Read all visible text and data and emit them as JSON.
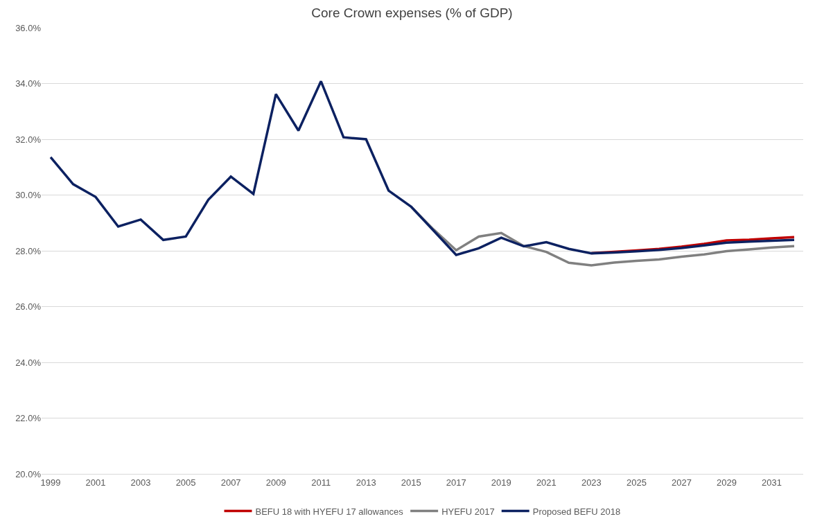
{
  "chart_data": {
    "type": "line",
    "title": "Core Crown expenses (% of GDP)",
    "x": [
      1999,
      2000,
      2001,
      2002,
      2003,
      2004,
      2005,
      2006,
      2007,
      2008,
      2009,
      2010,
      2011,
      2012,
      2013,
      2014,
      2015,
      2016,
      2017,
      2018,
      2019,
      2020,
      2021,
      2022,
      2023,
      2024,
      2025,
      2026,
      2027,
      2028,
      2029,
      2030,
      2031,
      2032
    ],
    "series": [
      {
        "name": "BEFU 18 with HYEFU 17 allowances",
        "color": "#c00000",
        "values": [
          null,
          null,
          null,
          null,
          null,
          null,
          null,
          null,
          null,
          null,
          null,
          null,
          null,
          null,
          null,
          null,
          null,
          null,
          null,
          null,
          null,
          null,
          null,
          null,
          27.91,
          27.96,
          28.01,
          28.07,
          28.15,
          28.25,
          28.37,
          28.4,
          28.45,
          28.49
        ]
      },
      {
        "name": "HYEFU 2017",
        "color": "#808080",
        "values": [
          null,
          null,
          null,
          null,
          null,
          null,
          null,
          null,
          null,
          null,
          null,
          null,
          null,
          null,
          null,
          null,
          29.58,
          28.76,
          28.02,
          28.51,
          28.64,
          28.17,
          27.96,
          27.57,
          27.48,
          27.58,
          27.64,
          27.69,
          27.79,
          27.87,
          27.99,
          28.05,
          28.12,
          28.17
        ]
      },
      {
        "name": "Proposed BEFU 2018",
        "color": "#0c2161",
        "values": [
          31.36,
          30.39,
          29.93,
          28.87,
          29.12,
          28.39,
          28.51,
          29.83,
          30.66,
          30.04,
          33.62,
          32.31,
          34.08,
          32.07,
          32.0,
          30.16,
          29.58,
          28.72,
          27.85,
          28.09,
          28.47,
          28.16,
          28.31,
          28.07,
          27.91,
          27.94,
          27.98,
          28.03,
          28.1,
          28.19,
          28.29,
          28.33,
          28.36,
          28.39
        ]
      }
    ],
    "xlim": [
      1998.6,
      2032.4
    ],
    "xticks": [
      1999,
      2001,
      2003,
      2005,
      2007,
      2009,
      2011,
      2013,
      2015,
      2017,
      2019,
      2021,
      2023,
      2025,
      2027,
      2029,
      2031
    ],
    "ylim": [
      20,
      36
    ],
    "yticks": [
      {
        "value": 20,
        "label": "20.0%"
      },
      {
        "value": 22,
        "label": "22.0%"
      },
      {
        "value": 24,
        "label": "24.0%"
      },
      {
        "value": 26,
        "label": "26.0%"
      },
      {
        "value": 28,
        "label": "28.0%"
      },
      {
        "value": 30,
        "label": "30.0%"
      },
      {
        "value": 32,
        "label": "32.0%"
      },
      {
        "value": 34,
        "label": "34.0%"
      },
      {
        "value": 36,
        "label": "36.0%"
      }
    ],
    "grid": "y",
    "legend": "bottom",
    "marker": "none",
    "line_style": "solid"
  }
}
